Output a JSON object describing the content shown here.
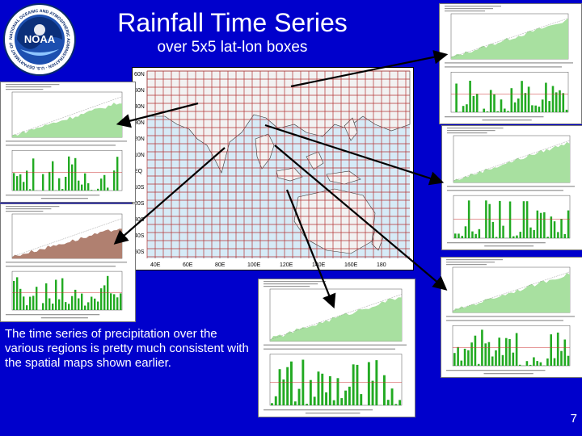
{
  "slide": {
    "title": "Rainfall Time Series",
    "subtitle": "over 5x5 lat-lon boxes",
    "caption": "The time series of  precipitation over the various regions is pretty much consistent with the spatial maps shown earlier.",
    "page_number": "7",
    "background": "#0000cc"
  },
  "logo": {
    "text": "NOAA",
    "ring_text": "NATIONAL OCEANIC AND ATMOSPHERIC ADMINISTRATION · U.S. DEPARTMENT OF COMMERCE",
    "icon": "noaa-logo-icon"
  },
  "map": {
    "grid": "5x5 lat-lon boxes",
    "ocean": "#cfe6f5",
    "grid_color": "#b33333"
  },
  "colors": {
    "accumulated_fill": "#a8e0a0",
    "deficit_fill": "#b08070",
    "bars": "#22aa22"
  }
}
